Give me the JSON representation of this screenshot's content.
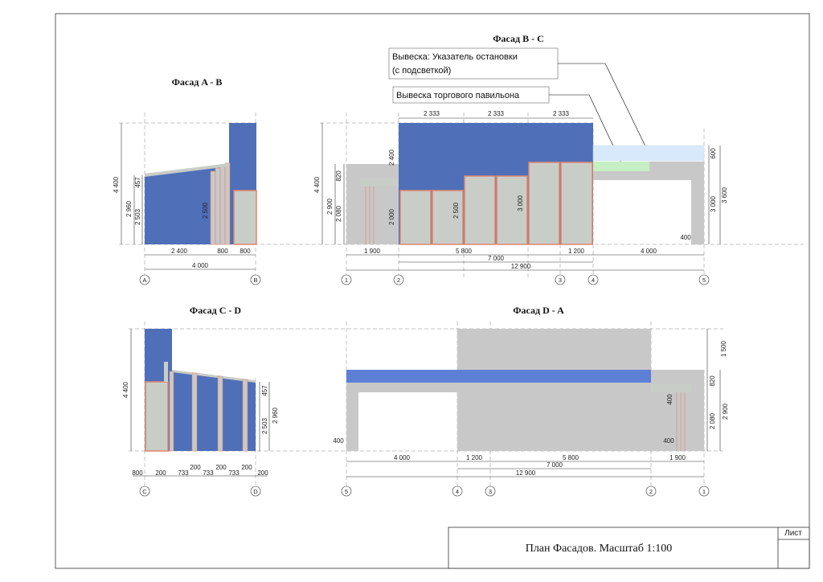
{
  "sheet": {
    "title": "План Фасадов. Масштаб 1:100",
    "sheet_label": "Лист"
  },
  "colors": {
    "blue": "#4f6fb8",
    "grey": "#c8c8c8",
    "cream": "#c9cdc8",
    "orange": "#e0856a",
    "light_blue": "#d7e9fa",
    "light_green": "#c7efc4"
  },
  "facade_ab": {
    "title": "Фасад A - B",
    "dims_bottom": [
      "2 400",
      "800",
      "800"
    ],
    "dim_total": "4 000",
    "dims_left": [
      "4 400",
      "2 960",
      "457",
      "2 503"
    ],
    "dim_inner": "2 500",
    "axes": [
      "A",
      "B"
    ]
  },
  "facade_bc": {
    "title": "Фасад B - C",
    "note_stop": "Вывеска: Указатель остановки",
    "note_stop_2": "(с подсветкой)",
    "note_pavilion": "Вывеска торгового павильона",
    "dims_top": [
      "2 333",
      "2 333",
      "2 333"
    ],
    "dims_left": [
      "4 400",
      "2 900",
      "820",
      "2 080"
    ],
    "dim_2400": "2 400",
    "dim_2000": "2 000",
    "dim_2500": "2 500",
    "dim_3000": "3 000",
    "dims_right": [
      "600",
      "3 000",
      "3 600"
    ],
    "dim_400": "400",
    "dims_bottom_1": [
      "1 900",
      "5 800",
      "1 200",
      "4 000"
    ],
    "dim_7000": "7 000",
    "dim_12900": "12 900",
    "axes": [
      "1",
      "2",
      "3",
      "4",
      "5"
    ]
  },
  "facade_cd": {
    "title": "Фасад C - D",
    "dims_bottom": [
      "800",
      "200",
      "733",
      "200",
      "733",
      "200",
      "733",
      "200",
      "200"
    ],
    "dim_4400": "4 400",
    "dims_right": [
      "457",
      "2 503",
      "2 960"
    ],
    "axes": [
      "C",
      "D"
    ]
  },
  "facade_da": {
    "title": "Фасад D - A",
    "dims_right": [
      "1 500",
      "820",
      "2 080",
      "2 900"
    ],
    "dim_400_left": "400",
    "dim_400_right_top": "400",
    "dim_400_right_bottom": "400",
    "dims_bottom_1": [
      "4 000",
      "1 200",
      "5 800",
      "1 900"
    ],
    "dim_7000": "7 000",
    "dim_12900": "12 900",
    "axes": [
      "5",
      "4",
      "3",
      "2",
      "1"
    ]
  }
}
